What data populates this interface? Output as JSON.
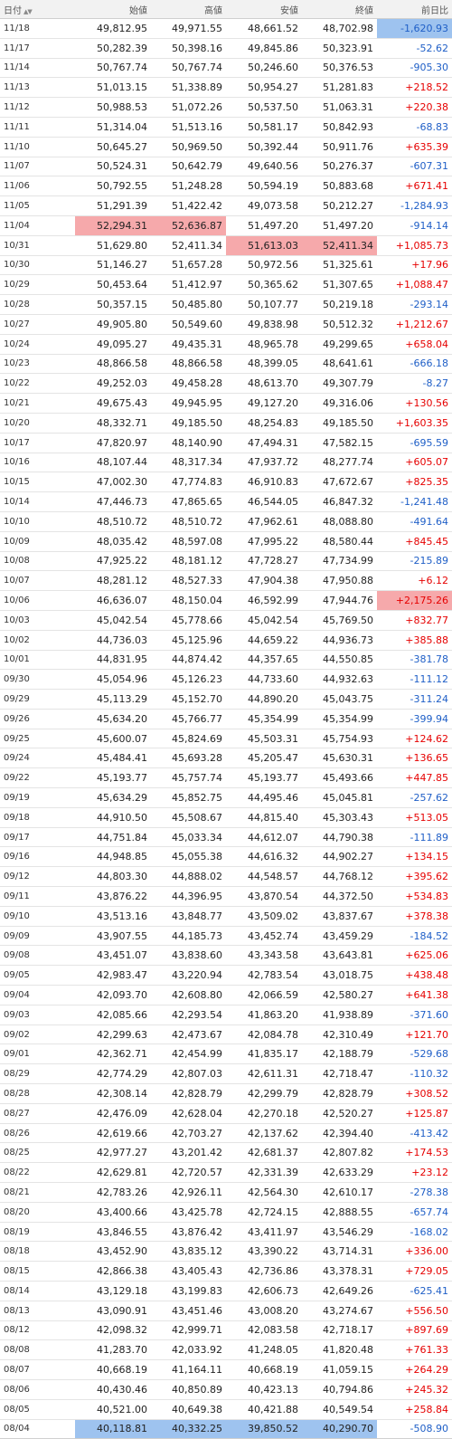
{
  "headers": {
    "date": "日付",
    "open": "始値",
    "high": "高値",
    "low": "安値",
    "close": "終値",
    "change": "前日比"
  },
  "icons": {
    "sort": "sort-arrows-icon"
  },
  "colors": {
    "up": "#e60000",
    "down": "#1f5fc7",
    "highlight_red": "#f6a9ab",
    "highlight_blue": "#9ec3ef"
  },
  "rows": [
    {
      "date": "11/18",
      "open": "49,812.95",
      "high": "49,971.55",
      "low": "48,661.52",
      "close": "48,702.98",
      "change": "-1,620.93"
    },
    {
      "date": "11/17",
      "open": "50,282.39",
      "high": "50,398.16",
      "low": "49,845.86",
      "close": "50,323.91",
      "change": "-52.62"
    },
    {
      "date": "11/14",
      "open": "50,767.74",
      "high": "50,767.74",
      "low": "50,246.60",
      "close": "50,376.53",
      "change": "-905.30"
    },
    {
      "date": "11/13",
      "open": "51,013.15",
      "high": "51,338.89",
      "low": "50,954.27",
      "close": "51,281.83",
      "change": "+218.52"
    },
    {
      "date": "11/12",
      "open": "50,988.53",
      "high": "51,072.26",
      "low": "50,537.50",
      "close": "51,063.31",
      "change": "+220.38"
    },
    {
      "date": "11/11",
      "open": "51,314.04",
      "high": "51,513.16",
      "low": "50,581.17",
      "close": "50,842.93",
      "change": "-68.83"
    },
    {
      "date": "11/10",
      "open": "50,645.27",
      "high": "50,969.50",
      "low": "50,392.44",
      "close": "50,911.76",
      "change": "+635.39"
    },
    {
      "date": "11/07",
      "open": "50,524.31",
      "high": "50,642.79",
      "low": "49,640.56",
      "close": "50,276.37",
      "change": "-607.31"
    },
    {
      "date": "11/06",
      "open": "50,792.55",
      "high": "51,248.28",
      "low": "50,594.19",
      "close": "50,883.68",
      "change": "+671.41"
    },
    {
      "date": "11/05",
      "open": "51,291.39",
      "high": "51,422.42",
      "low": "49,073.58",
      "close": "50,212.27",
      "change": "-1,284.93"
    },
    {
      "date": "11/04",
      "open": "52,294.31",
      "high": "52,636.87",
      "low": "51,497.20",
      "close": "51,497.20",
      "change": "-914.14"
    },
    {
      "date": "10/31",
      "open": "51,629.80",
      "high": "52,411.34",
      "low": "51,613.03",
      "close": "52,411.34",
      "change": "+1,085.73"
    },
    {
      "date": "10/30",
      "open": "51,146.27",
      "high": "51,657.28",
      "low": "50,972.56",
      "close": "51,325.61",
      "change": "+17.96"
    },
    {
      "date": "10/29",
      "open": "50,453.64",
      "high": "51,412.97",
      "low": "50,365.62",
      "close": "51,307.65",
      "change": "+1,088.47"
    },
    {
      "date": "10/28",
      "open": "50,357.15",
      "high": "50,485.80",
      "low": "50,107.77",
      "close": "50,219.18",
      "change": "-293.14"
    },
    {
      "date": "10/27",
      "open": "49,905.80",
      "high": "50,549.60",
      "low": "49,838.98",
      "close": "50,512.32",
      "change": "+1,212.67"
    },
    {
      "date": "10/24",
      "open": "49,095.27",
      "high": "49,435.31",
      "low": "48,965.78",
      "close": "49,299.65",
      "change": "+658.04"
    },
    {
      "date": "10/23",
      "open": "48,866.58",
      "high": "48,866.58",
      "low": "48,399.05",
      "close": "48,641.61",
      "change": "-666.18"
    },
    {
      "date": "10/22",
      "open": "49,252.03",
      "high": "49,458.28",
      "low": "48,613.70",
      "close": "49,307.79",
      "change": "-8.27"
    },
    {
      "date": "10/21",
      "open": "49,675.43",
      "high": "49,945.95",
      "low": "49,127.20",
      "close": "49,316.06",
      "change": "+130.56"
    },
    {
      "date": "10/20",
      "open": "48,332.71",
      "high": "49,185.50",
      "low": "48,254.83",
      "close": "49,185.50",
      "change": "+1,603.35"
    },
    {
      "date": "10/17",
      "open": "47,820.97",
      "high": "48,140.90",
      "low": "47,494.31",
      "close": "47,582.15",
      "change": "-695.59"
    },
    {
      "date": "10/16",
      "open": "48,107.44",
      "high": "48,317.34",
      "low": "47,937.72",
      "close": "48,277.74",
      "change": "+605.07"
    },
    {
      "date": "10/15",
      "open": "47,002.30",
      "high": "47,774.83",
      "low": "46,910.83",
      "close": "47,672.67",
      "change": "+825.35"
    },
    {
      "date": "10/14",
      "open": "47,446.73",
      "high": "47,865.65",
      "low": "46,544.05",
      "close": "46,847.32",
      "change": "-1,241.48"
    },
    {
      "date": "10/10",
      "open": "48,510.72",
      "high": "48,510.72",
      "low": "47,962.61",
      "close": "48,088.80",
      "change": "-491.64"
    },
    {
      "date": "10/09",
      "open": "48,035.42",
      "high": "48,597.08",
      "low": "47,995.22",
      "close": "48,580.44",
      "change": "+845.45"
    },
    {
      "date": "10/08",
      "open": "47,925.22",
      "high": "48,181.12",
      "low": "47,728.27",
      "close": "47,734.99",
      "change": "-215.89"
    },
    {
      "date": "10/07",
      "open": "48,281.12",
      "high": "48,527.33",
      "low": "47,904.38",
      "close": "47,950.88",
      "change": "+6.12"
    },
    {
      "date": "10/06",
      "open": "46,636.07",
      "high": "48,150.04",
      "low": "46,592.99",
      "close": "47,944.76",
      "change": "+2,175.26"
    },
    {
      "date": "10/03",
      "open": "45,042.54",
      "high": "45,778.66",
      "low": "45,042.54",
      "close": "45,769.50",
      "change": "+832.77"
    },
    {
      "date": "10/02",
      "open": "44,736.03",
      "high": "45,125.96",
      "low": "44,659.22",
      "close": "44,936.73",
      "change": "+385.88"
    },
    {
      "date": "10/01",
      "open": "44,831.95",
      "high": "44,874.42",
      "low": "44,357.65",
      "close": "44,550.85",
      "change": "-381.78"
    },
    {
      "date": "09/30",
      "open": "45,054.96",
      "high": "45,126.23",
      "low": "44,733.60",
      "close": "44,932.63",
      "change": "-111.12"
    },
    {
      "date": "09/29",
      "open": "45,113.29",
      "high": "45,152.70",
      "low": "44,890.20",
      "close": "45,043.75",
      "change": "-311.24"
    },
    {
      "date": "09/26",
      "open": "45,634.20",
      "high": "45,766.77",
      "low": "45,354.99",
      "close": "45,354.99",
      "change": "-399.94"
    },
    {
      "date": "09/25",
      "open": "45,600.07",
      "high": "45,824.69",
      "low": "45,503.31",
      "close": "45,754.93",
      "change": "+124.62"
    },
    {
      "date": "09/24",
      "open": "45,484.41",
      "high": "45,693.28",
      "low": "45,205.47",
      "close": "45,630.31",
      "change": "+136.65"
    },
    {
      "date": "09/22",
      "open": "45,193.77",
      "high": "45,757.74",
      "low": "45,193.77",
      "close": "45,493.66",
      "change": "+447.85"
    },
    {
      "date": "09/19",
      "open": "45,634.29",
      "high": "45,852.75",
      "low": "44,495.46",
      "close": "45,045.81",
      "change": "-257.62"
    },
    {
      "date": "09/18",
      "open": "44,910.50",
      "high": "45,508.67",
      "low": "44,815.40",
      "close": "45,303.43",
      "change": "+513.05"
    },
    {
      "date": "09/17",
      "open": "44,751.84",
      "high": "45,033.34",
      "low": "44,612.07",
      "close": "44,790.38",
      "change": "-111.89"
    },
    {
      "date": "09/16",
      "open": "44,948.85",
      "high": "45,055.38",
      "low": "44,616.32",
      "close": "44,902.27",
      "change": "+134.15"
    },
    {
      "date": "09/12",
      "open": "44,803.30",
      "high": "44,888.02",
      "low": "44,548.57",
      "close": "44,768.12",
      "change": "+395.62"
    },
    {
      "date": "09/11",
      "open": "43,876.22",
      "high": "44,396.95",
      "low": "43,870.54",
      "close": "44,372.50",
      "change": "+534.83"
    },
    {
      "date": "09/10",
      "open": "43,513.16",
      "high": "43,848.77",
      "low": "43,509.02",
      "close": "43,837.67",
      "change": "+378.38"
    },
    {
      "date": "09/09",
      "open": "43,907.55",
      "high": "44,185.73",
      "low": "43,452.74",
      "close": "43,459.29",
      "change": "-184.52"
    },
    {
      "date": "09/08",
      "open": "43,451.07",
      "high": "43,838.60",
      "low": "43,343.58",
      "close": "43,643.81",
      "change": "+625.06"
    },
    {
      "date": "09/05",
      "open": "42,983.47",
      "high": "43,220.94",
      "low": "42,783.54",
      "close": "43,018.75",
      "change": "+438.48"
    },
    {
      "date": "09/04",
      "open": "42,093.70",
      "high": "42,608.80",
      "low": "42,066.59",
      "close": "42,580.27",
      "change": "+641.38"
    },
    {
      "date": "09/03",
      "open": "42,085.66",
      "high": "42,293.54",
      "low": "41,863.20",
      "close": "41,938.89",
      "change": "-371.60"
    },
    {
      "date": "09/02",
      "open": "42,299.63",
      "high": "42,473.67",
      "low": "42,084.78",
      "close": "42,310.49",
      "change": "+121.70"
    },
    {
      "date": "09/01",
      "open": "42,362.71",
      "high": "42,454.99",
      "low": "41,835.17",
      "close": "42,188.79",
      "change": "-529.68"
    },
    {
      "date": "08/29",
      "open": "42,774.29",
      "high": "42,807.03",
      "low": "42,611.31",
      "close": "42,718.47",
      "change": "-110.32"
    },
    {
      "date": "08/28",
      "open": "42,308.14",
      "high": "42,828.79",
      "low": "42,299.79",
      "close": "42,828.79",
      "change": "+308.52"
    },
    {
      "date": "08/27",
      "open": "42,476.09",
      "high": "42,628.04",
      "low": "42,270.18",
      "close": "42,520.27",
      "change": "+125.87"
    },
    {
      "date": "08/26",
      "open": "42,619.66",
      "high": "42,703.27",
      "low": "42,137.62",
      "close": "42,394.40",
      "change": "-413.42"
    },
    {
      "date": "08/25",
      "open": "42,977.27",
      "high": "43,201.42",
      "low": "42,681.37",
      "close": "42,807.82",
      "change": "+174.53"
    },
    {
      "date": "08/22",
      "open": "42,629.81",
      "high": "42,720.57",
      "low": "42,331.39",
      "close": "42,633.29",
      "change": "+23.12"
    },
    {
      "date": "08/21",
      "open": "42,783.26",
      "high": "42,926.11",
      "low": "42,564.30",
      "close": "42,610.17",
      "change": "-278.38"
    },
    {
      "date": "08/20",
      "open": "43,400.66",
      "high": "43,425.78",
      "low": "42,724.15",
      "close": "42,888.55",
      "change": "-657.74"
    },
    {
      "date": "08/19",
      "open": "43,846.55",
      "high": "43,876.42",
      "low": "43,411.97",
      "close": "43,546.29",
      "change": "-168.02"
    },
    {
      "date": "08/18",
      "open": "43,452.90",
      "high": "43,835.12",
      "low": "43,390.22",
      "close": "43,714.31",
      "change": "+336.00"
    },
    {
      "date": "08/15",
      "open": "42,866.38",
      "high": "43,405.43",
      "low": "42,736.86",
      "close": "43,378.31",
      "change": "+729.05"
    },
    {
      "date": "08/14",
      "open": "43,129.18",
      "high": "43,199.83",
      "low": "42,606.73",
      "close": "42,649.26",
      "change": "-625.41"
    },
    {
      "date": "08/13",
      "open": "43,090.91",
      "high": "43,451.46",
      "low": "43,008.20",
      "close": "43,274.67",
      "change": "+556.50"
    },
    {
      "date": "08/12",
      "open": "42,098.32",
      "high": "42,999.71",
      "low": "42,083.58",
      "close": "42,718.17",
      "change": "+897.69"
    },
    {
      "date": "08/08",
      "open": "41,283.70",
      "high": "42,033.92",
      "low": "41,248.05",
      "close": "41,820.48",
      "change": "+761.33"
    },
    {
      "date": "08/07",
      "open": "40,668.19",
      "high": "41,164.11",
      "low": "40,668.19",
      "close": "41,059.15",
      "change": "+264.29"
    },
    {
      "date": "08/06",
      "open": "40,430.46",
      "high": "40,850.89",
      "low": "40,423.13",
      "close": "40,794.86",
      "change": "+245.32"
    },
    {
      "date": "08/05",
      "open": "40,521.00",
      "high": "40,649.38",
      "low": "40,421.88",
      "close": "40,549.54",
      "change": "+258.84"
    },
    {
      "date": "08/04",
      "open": "40,118.81",
      "high": "40,332.25",
      "low": "39,850.52",
      "close": "40,290.70",
      "change": "-508.90"
    }
  ],
  "highlights": [
    {
      "row": 0,
      "col": "change",
      "color": "blue"
    },
    {
      "row": 10,
      "col": "open",
      "color": "red"
    },
    {
      "row": 10,
      "col": "high",
      "color": "red"
    },
    {
      "row": 11,
      "col": "low",
      "color": "red"
    },
    {
      "row": 11,
      "col": "close",
      "color": "red"
    },
    {
      "row": 29,
      "col": "change",
      "color": "red"
    },
    {
      "row": 71,
      "col": "open",
      "color": "blue"
    },
    {
      "row": 71,
      "col": "high",
      "color": "blue"
    },
    {
      "row": 71,
      "col": "low",
      "color": "blue"
    },
    {
      "row": 71,
      "col": "close",
      "color": "blue"
    }
  ]
}
